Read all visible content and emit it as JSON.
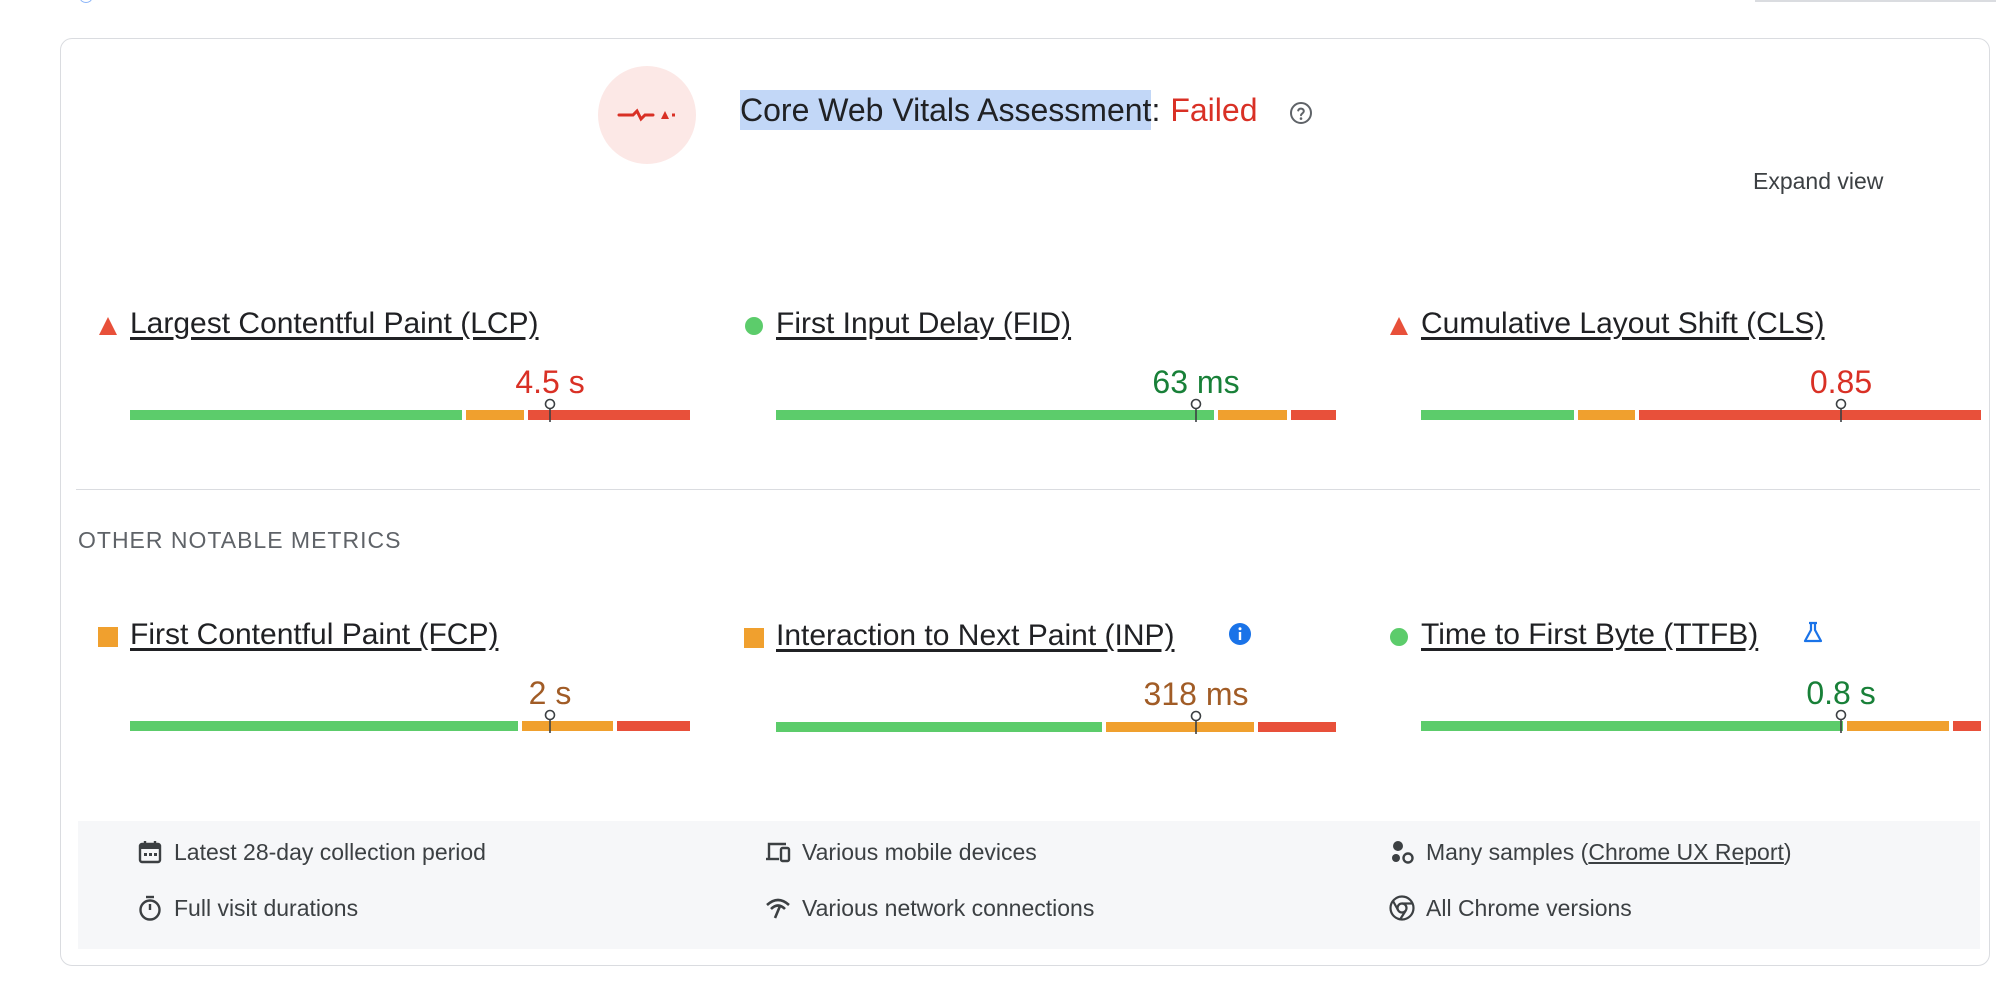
{
  "assessment": {
    "title": "Core Web Vitals Assessment",
    "separator": ":",
    "status": "Failed",
    "status_color": "#d93025",
    "icon": "failed-assessment-icon",
    "help_icon": "help-circle-icon"
  },
  "expand_view_label": "Expand view",
  "core_metrics": [
    {
      "label": "Largest Contentful Paint (LCP)",
      "value": "4.5 s",
      "rating": "poor",
      "marker": "red-triangle-icon",
      "distribution": [
        0.6,
        0.11,
        0.29
      ],
      "p75_position": 0.75
    },
    {
      "label": "First Input Delay (FID)",
      "value": "63 ms",
      "rating": "good",
      "marker": "green-circle-icon",
      "distribution": [
        0.79,
        0.13,
        0.08
      ],
      "p75_position": 0.75
    },
    {
      "label": "Cumulative Layout Shift (CLS)",
      "value": "0.85",
      "rating": "poor",
      "marker": "red-triangle-icon",
      "distribution": [
        0.28,
        0.11,
        0.61
      ],
      "p75_position": 0.75
    }
  ],
  "other_section_label": "OTHER NOTABLE METRICS",
  "other_metrics": [
    {
      "label": "First Contentful Paint (FCP)",
      "value": "2 s",
      "rating": "needs-improvement",
      "marker": "orange-square-icon",
      "distribution": [
        0.7,
        0.17,
        0.13
      ],
      "p75_position": 0.75,
      "badge": ""
    },
    {
      "label": "Interaction to Next Paint (INP)",
      "value": "318 ms",
      "rating": "needs-improvement",
      "marker": "orange-square-icon",
      "distribution": [
        0.59,
        0.27,
        0.14
      ],
      "p75_position": 0.75,
      "badge": "info-icon"
    },
    {
      "label": "Time to First Byte (TTFB)",
      "value": "0.8 s",
      "rating": "good",
      "marker": "green-circle-icon",
      "distribution": [
        0.76,
        0.19,
        0.05
      ],
      "p75_position": 0.75,
      "badge": "experimental-flask-icon"
    }
  ],
  "footer": {
    "collection_period": "Latest 28-day collection period",
    "devices": "Various mobile devices",
    "samples_prefix": "Many samples (",
    "samples_link": "Chrome UX Report",
    "samples_suffix": ")",
    "durations": "Full visit durations",
    "network": "Various network connections",
    "chrome_versions": "All Chrome versions"
  },
  "colors": {
    "good": "#5ccc6b",
    "needs_improvement": "#f0a02e",
    "poor": "#e8503a",
    "good_text": "#188038",
    "ni_text": "#a15c26",
    "poor_text": "#d93025",
    "info_blue": "#1a73e8"
  }
}
